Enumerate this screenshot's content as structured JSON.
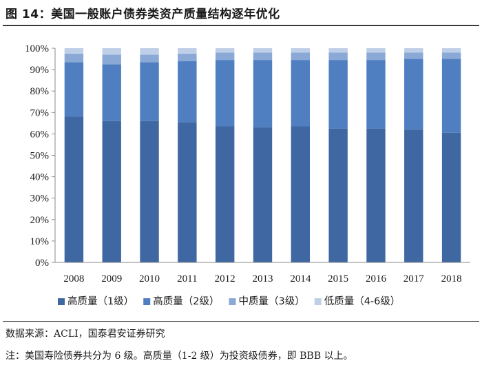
{
  "figure": {
    "title": "图 14：美国一般账户债券类资产质量结构逐年优化",
    "source": "数据来源：ACLI，国泰君安证券研究",
    "note": "注：美国寿险债券共分为 6 级。高质量（1-2 级）为投资级债券，即 BBB 以上。"
  },
  "chart_data": {
    "type": "bar",
    "stacked": true,
    "title": "",
    "xlabel": "",
    "ylabel": "",
    "categories": [
      "2008",
      "2009",
      "2010",
      "2011",
      "2012",
      "2013",
      "2014",
      "2015",
      "2016",
      "2017",
      "2018"
    ],
    "y_ticks": [
      "0%",
      "10%",
      "20%",
      "30%",
      "40%",
      "50%",
      "60%",
      "70%",
      "80%",
      "90%",
      "100%"
    ],
    "ylim": [
      0,
      100
    ],
    "grid": false,
    "legend_position": "bottom",
    "series": [
      {
        "name": "高质量（1级）",
        "color": "#3f68a3",
        "values": [
          68,
          66,
          66,
          65.5,
          63.5,
          63,
          63.5,
          62.5,
          62.5,
          62,
          60.5
        ]
      },
      {
        "name": "高质量（2级）",
        "color": "#4f7fc0",
        "values": [
          25.5,
          26.5,
          27.5,
          28.5,
          31,
          31.5,
          31,
          32,
          32,
          33,
          34.5
        ]
      },
      {
        "name": "中质量（3级）",
        "color": "#8ba9d7",
        "values": [
          4,
          4.5,
          3.5,
          3.5,
          3.5,
          3.5,
          3.5,
          3.5,
          3.5,
          3,
          3
        ]
      },
      {
        "name": "低质量（4-6级）",
        "color": "#c0cfe8",
        "values": [
          2.5,
          3,
          3,
          2.5,
          2,
          2,
          2,
          2,
          2,
          2,
          2
        ]
      }
    ]
  }
}
